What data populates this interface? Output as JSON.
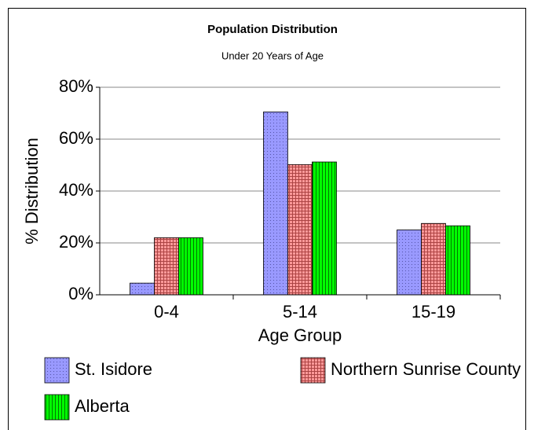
{
  "chart_data": {
    "type": "bar",
    "title": "Population Distribution",
    "subtitle": "Under 20 Years of Age",
    "x_label": "Age Group",
    "y_label": "% Distribution",
    "categories": [
      "0-4",
      "5-14",
      "15-19"
    ],
    "series": [
      {
        "name": "St. Isidore",
        "color": "#9999ff",
        "values": [
          4.5,
          70.5,
          25
        ]
      },
      {
        "name": "Northern Sunrise County",
        "color": "#ff9999",
        "values": [
          22,
          50.2,
          27.5
        ]
      },
      {
        "name": "Alberta",
        "color": "#00ff00",
        "values": [
          22,
          51.2,
          26.6
        ]
      }
    ],
    "ylim": [
      0,
      80
    ],
    "yticks": [
      {
        "value": 0,
        "label": "0%"
      },
      {
        "value": 20,
        "label": "20%"
      },
      {
        "value": 40,
        "label": "40%"
      },
      {
        "value": 60,
        "label": "60%"
      },
      {
        "value": 80,
        "label": "80%"
      }
    ],
    "grid": true
  }
}
